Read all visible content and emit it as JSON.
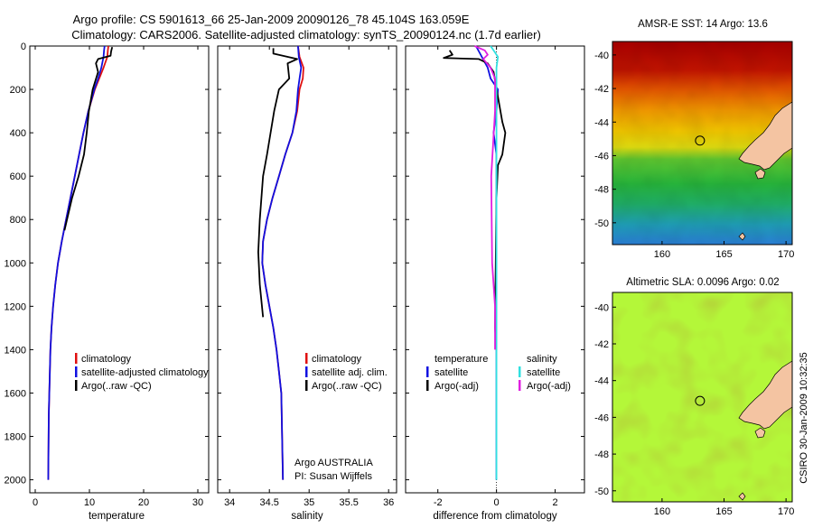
{
  "header": {
    "line1": "Argo profile: CS 5901613_66 25-Jan-2009 20090126_78 45.104S 163.059E",
    "line2": "Climatology: CARS2006. Satellite-adjusted climatology: synTS_20090124.nc (1.7d earlier)"
  },
  "side_label": "CSIRO 30-Jan-2009 10:32:35",
  "colors": {
    "climatology": "#e01010",
    "satellite": "#1010e0",
    "argo": "#000000",
    "salinity_satellite": "#30e0e0",
    "salinity_argo": "#e020e0",
    "land": "#f4c4a2"
  },
  "chart_data": [
    {
      "type": "line",
      "name": "temperature-profile",
      "xlabel": "temperature",
      "ylabel": "",
      "xlim": [
        -1,
        32
      ],
      "ylim": [
        2060,
        0
      ],
      "y_inverted": true,
      "xticks": [
        "0",
        "10",
        "20",
        "30"
      ],
      "xtick_values": [
        0,
        10,
        20,
        30
      ],
      "yticks": [
        "0",
        "200",
        "400",
        "600",
        "800",
        "1000",
        "1200",
        "1400",
        "1600",
        "1800",
        "2000"
      ],
      "ytick_values": [
        0,
        200,
        400,
        600,
        800,
        1000,
        1200,
        1400,
        1600,
        1800,
        2000
      ],
      "legend_position": "middle-right",
      "legend": [
        "climatology",
        "satellite-adjusted climatology",
        "Argo(..raw -QC)"
      ],
      "series": [
        {
          "name": "climatology",
          "color": "#e01010",
          "x": [
            13.5,
            13.4,
            13.3,
            12.6,
            11.8,
            11.0,
            9.8,
            8.9,
            8.1,
            7.3,
            6.5,
            5.7,
            4.9,
            4.2,
            3.7,
            3.3,
            3.0,
            2.8,
            2.7,
            2.5,
            2.4
          ],
          "y": [
            0,
            20,
            50,
            100,
            150,
            200,
            300,
            400,
            500,
            600,
            700,
            800,
            900,
            1000,
            1100,
            1200,
            1300,
            1400,
            1500,
            1700,
            2000
          ]
        },
        {
          "name": "satellite-adjusted climatology",
          "color": "#1010e0",
          "x": [
            12.8,
            12.7,
            12.6,
            12.2,
            11.6,
            10.9,
            9.8,
            8.9,
            8.1,
            7.3,
            6.5,
            5.7,
            4.9,
            4.2,
            3.7,
            3.3,
            3.0,
            2.8,
            2.7,
            2.5,
            2.4
          ],
          "y": [
            0,
            20,
            50,
            100,
            150,
            200,
            300,
            400,
            500,
            600,
            700,
            800,
            900,
            1000,
            1100,
            1200,
            1300,
            1400,
            1500,
            1700,
            2000
          ]
        },
        {
          "name": "Argo(..raw -QC)",
          "color": "#000000",
          "x": [
            14.2,
            14.0,
            13.9,
            11.6,
            11.2,
            11.6,
            10.6,
            9.9,
            9.5,
            9.0,
            8.0,
            6.8,
            5.4
          ],
          "y": [
            5,
            25,
            45,
            60,
            80,
            120,
            200,
            300,
            400,
            500,
            600,
            700,
            850
          ]
        }
      ]
    },
    {
      "type": "line",
      "name": "salinity-profile",
      "xlabel": "salinity",
      "ylabel": "",
      "xlim": [
        33.85,
        36.1
      ],
      "ylim": [
        2060,
        0
      ],
      "y_inverted": true,
      "xticks": [
        "34",
        "34.5",
        "35",
        "35.5",
        "36"
      ],
      "xtick_values": [
        34,
        34.5,
        35,
        35.5,
        36
      ],
      "legend_position": "middle-right",
      "legend": [
        "climatology",
        "satellite adj. clim.",
        "Argo(..raw -QC)"
      ],
      "annotations": [
        "Argo AUSTRALIA",
        "PI: Susan Wijffels"
      ],
      "series": [
        {
          "name": "climatology",
          "color": "#e01010",
          "x": [
            34.86,
            34.88,
            34.93,
            34.92,
            34.88,
            34.85,
            34.79,
            34.7,
            34.62,
            34.54,
            34.47,
            34.42,
            34.41,
            34.45,
            34.5,
            34.55,
            34.59,
            34.62,
            34.65,
            34.66,
            34.67
          ],
          "y": [
            0,
            50,
            100,
            150,
            200,
            300,
            400,
            500,
            600,
            700,
            800,
            900,
            1000,
            1100,
            1200,
            1300,
            1400,
            1500,
            1600,
            1800,
            2000
          ]
        },
        {
          "name": "satellite adj. clim.",
          "color": "#1010e0",
          "x": [
            34.86,
            34.87,
            34.9,
            34.88,
            34.86,
            34.84,
            34.79,
            34.7,
            34.62,
            34.54,
            34.47,
            34.42,
            34.41,
            34.45,
            34.5,
            34.55,
            34.59,
            34.62,
            34.65,
            34.66,
            34.67
          ],
          "y": [
            0,
            50,
            100,
            150,
            200,
            300,
            400,
            500,
            600,
            700,
            800,
            900,
            1000,
            1100,
            1200,
            1300,
            1400,
            1500,
            1600,
            1800,
            2000
          ]
        },
        {
          "name": "Argo(..raw -QC)",
          "color": "#000000",
          "x": [
            34.55,
            34.55,
            34.85,
            34.73,
            34.75,
            34.62,
            34.56,
            34.47,
            34.42,
            34.38,
            34.36,
            34.38,
            34.42
          ],
          "y": [
            10,
            35,
            60,
            80,
            150,
            200,
            300,
            500,
            600,
            800,
            950,
            1100,
            1250
          ]
        }
      ]
    },
    {
      "type": "line",
      "name": "difference-profile",
      "xlabel": "difference from climatology",
      "ylabel": "",
      "xlim": [
        -3.1,
        3.0
      ],
      "ylim": [
        2060,
        0
      ],
      "y_inverted": true,
      "xticks": [
        "-2",
        "0",
        "2"
      ],
      "xtick_values": [
        -2,
        0,
        2
      ],
      "zero_line": true,
      "legend_position": "middle",
      "legend_groups": [
        {
          "title": "temperature",
          "items": [
            "satellite",
            "Argo(-adj)"
          ]
        },
        {
          "title": "salinity",
          "items": [
            "satellite",
            "Argo(-adj)"
          ]
        }
      ],
      "series": [
        {
          "name": "temperature satellite",
          "color": "#1010e0",
          "x": [
            -0.7,
            -0.5,
            -0.3,
            -0.2,
            0.05,
            0.0,
            -0.1,
            0.0,
            0.0,
            0.0,
            0.0,
            0.0
          ],
          "y": [
            0,
            50,
            100,
            150,
            200,
            300,
            400,
            500,
            600,
            800,
            1200,
            2000
          ]
        },
        {
          "name": "temperature Argo(-adj)",
          "color": "#000000",
          "x": [
            -1.6,
            -1.5,
            -1.8,
            -0.6,
            -0.3,
            -0.1,
            0.2,
            0.3,
            0.2,
            0.05,
            0.0,
            -0.05,
            0.0
          ],
          "y": [
            20,
            40,
            55,
            60,
            80,
            120,
            350,
            400,
            500,
            550,
            700,
            1300,
            1400
          ]
        },
        {
          "name": "salinity satellite",
          "color": "#30e0e0",
          "x": [
            -0.2,
            -0.1,
            0.05,
            0.0,
            0.0,
            0.0,
            0.0
          ],
          "y": [
            0,
            20,
            50,
            100,
            200,
            500,
            2000
          ]
        },
        {
          "name": "salinity Argo(-adj)",
          "color": "#e020e0",
          "x": [
            -0.75,
            -0.4,
            -0.3,
            -0.45,
            -0.2,
            -0.05,
            -0.05,
            -0.18,
            -0.15,
            -0.05,
            -0.05
          ],
          "y": [
            0,
            20,
            40,
            60,
            100,
            150,
            300,
            600,
            1000,
            1200,
            1400
          ]
        }
      ]
    },
    {
      "type": "heatmap",
      "name": "sst-map",
      "title": "AMSR-E SST: 14 Argo: 13.6",
      "xlim": [
        156,
        170.5
      ],
      "ylim": [
        -51.3,
        -39.2
      ],
      "xticks": [
        "160",
        "165",
        "170"
      ],
      "xtick_values": [
        160,
        165,
        170
      ],
      "yticks": [
        "-40",
        "-42",
        "-44",
        "-46",
        "-48",
        "-50"
      ],
      "ytick_values": [
        -40,
        -42,
        -44,
        -46,
        -48,
        -50
      ],
      "float_position": {
        "lon": 163.059,
        "lat": -45.104
      }
    },
    {
      "type": "heatmap",
      "name": "sla-map",
      "title": "Altimetric SLA: 0.0096 Argo: 0.02",
      "xlim": [
        156,
        170.5
      ],
      "ylim": [
        -50.6,
        -39.2
      ],
      "xticks": [
        "160",
        "165",
        "170"
      ],
      "xtick_values": [
        160,
        165,
        170
      ],
      "yticks": [
        "-40",
        "-42",
        "-44",
        "-46",
        "-48",
        "-50"
      ],
      "ytick_values": [
        -40,
        -42,
        -44,
        -46,
        -48,
        -50
      ],
      "float_position": {
        "lon": 163.059,
        "lat": -45.104
      }
    }
  ]
}
